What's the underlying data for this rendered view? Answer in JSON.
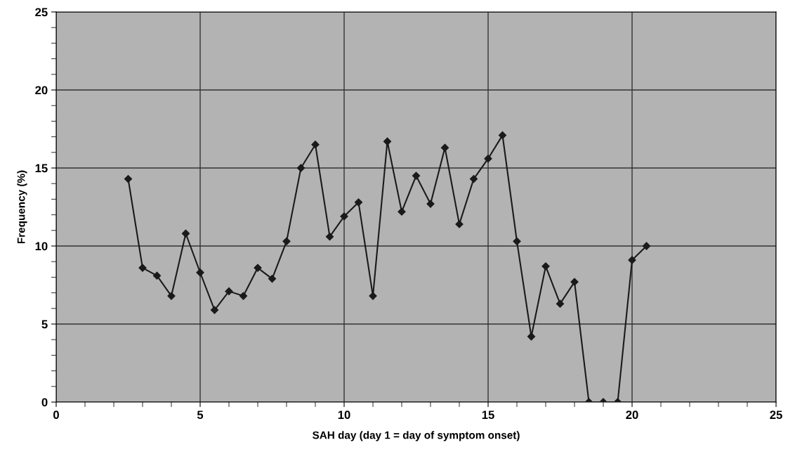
{
  "chart_data": {
    "type": "line",
    "xlabel": "SAH day (day 1 = day of symptom onset)",
    "ylabel": "Frequency (%)",
    "x": [
      2.5,
      3,
      3.5,
      4,
      4.5,
      5,
      5.5,
      6,
      6.5,
      7,
      7.5,
      8,
      8.5,
      9,
      9.5,
      10,
      10.5,
      11,
      11.5,
      12,
      12.5,
      13,
      13.5,
      14,
      14.5,
      15,
      15.5,
      16,
      16.5,
      17,
      17.5,
      18,
      18.5,
      19,
      19.5,
      20,
      20.5
    ],
    "series": [
      {
        "color": "#1a1a1a",
        "values": [
          14.3,
          8.6,
          8.1,
          6.8,
          10.8,
          8.3,
          5.9,
          7.1,
          6.8,
          8.6,
          7.9,
          10.3,
          15.0,
          16.5,
          10.6,
          11.9,
          12.8,
          6.8,
          16.7,
          12.2,
          14.5,
          12.7,
          16.3,
          11.4,
          14.3,
          15.6,
          17.1,
          10.3,
          4.2,
          8.7,
          6.3,
          7.7,
          0,
          0,
          0,
          9.1,
          10.0
        ]
      }
    ],
    "xlim": [
      0,
      25
    ],
    "ylim": [
      0,
      25
    ],
    "xticks": [
      0,
      5,
      10,
      15,
      20,
      25
    ],
    "yticks": [
      0,
      5,
      10,
      15,
      20,
      25
    ],
    "grid": true,
    "marker": "diamond",
    "line_style": "solid"
  }
}
